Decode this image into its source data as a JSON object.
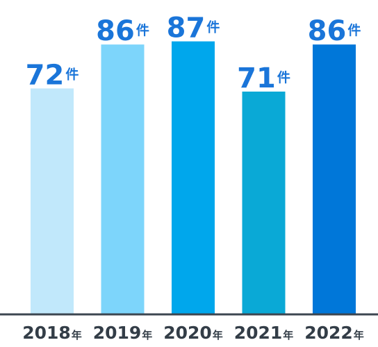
{
  "chart_data": {
    "type": "bar",
    "categories": [
      "2018",
      "2019",
      "2020",
      "2021",
      "2022"
    ],
    "category_suffix": "年",
    "values": [
      72,
      86,
      87,
      71,
      86
    ],
    "value_suffix": "件",
    "ylim": [
      0,
      92
    ],
    "grid": false,
    "colors": {
      "bars": [
        "#c1e8fb",
        "#7dd5fb",
        "#00a7ec",
        "#0aa9d6",
        "#0077d9"
      ],
      "value_labels": "#1a75d9",
      "category_labels": "#333d47",
      "baseline": "#3c4650"
    }
  }
}
